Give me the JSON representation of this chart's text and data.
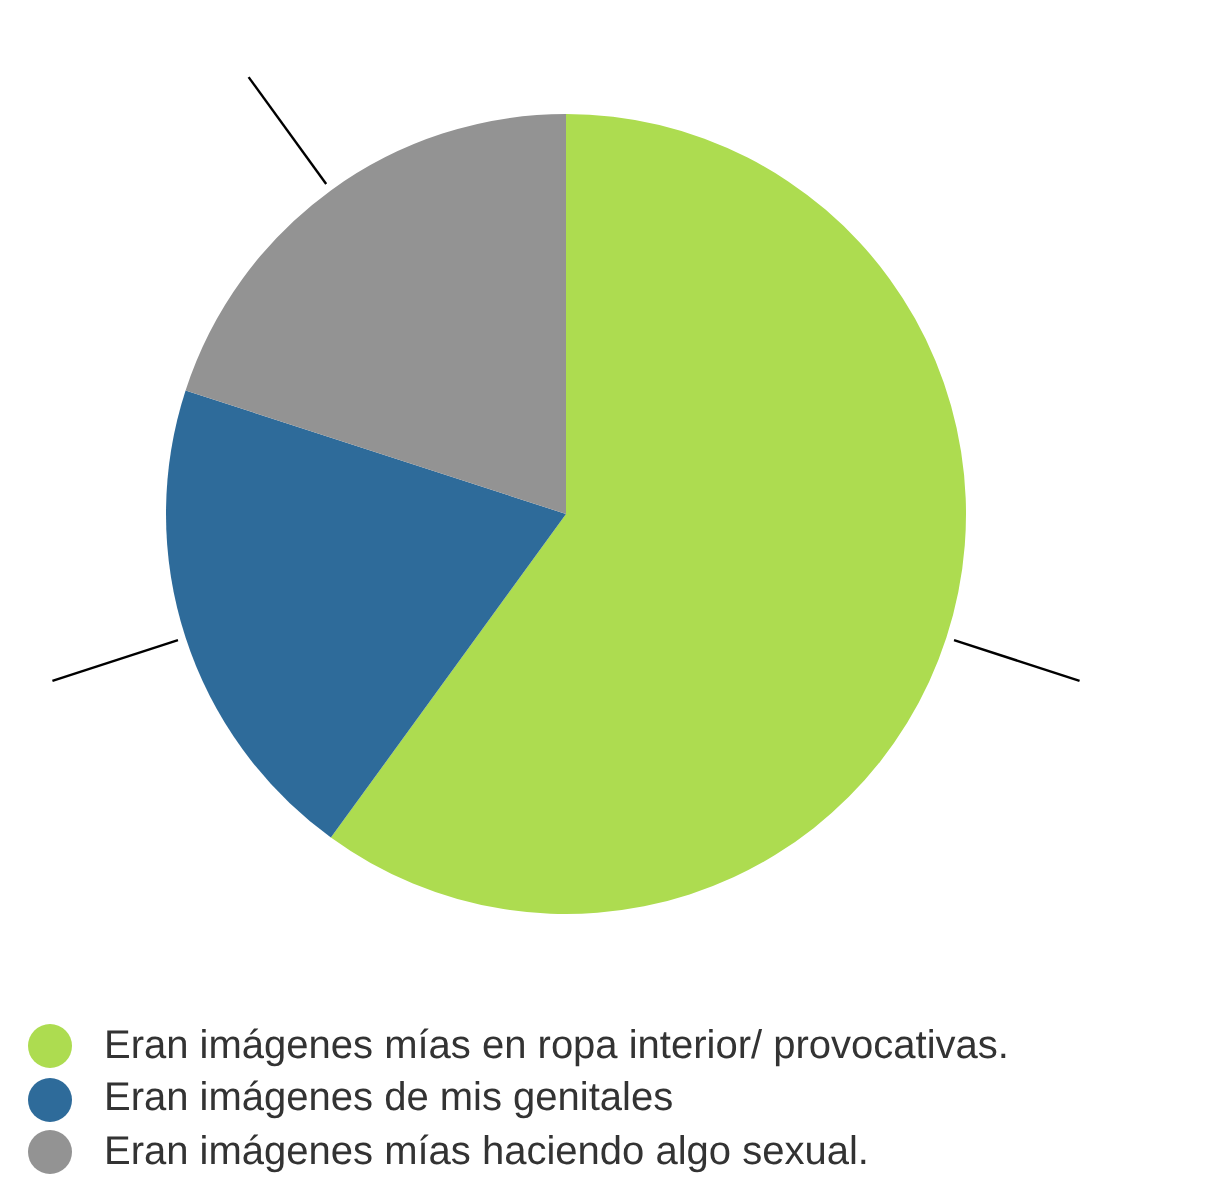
{
  "chart_data": {
    "type": "pie",
    "categories": [
      "Eran imágenes mías en ropa interior/ provocativas.",
      "Eran imágenes de mis genitales",
      "Eran imágenes mías haciendo algo sexual."
    ],
    "values": [
      60,
      20,
      20
    ],
    "colors": [
      "#addc50",
      "#2e6b9a",
      "#939393"
    ],
    "legend": "bottom"
  }
}
